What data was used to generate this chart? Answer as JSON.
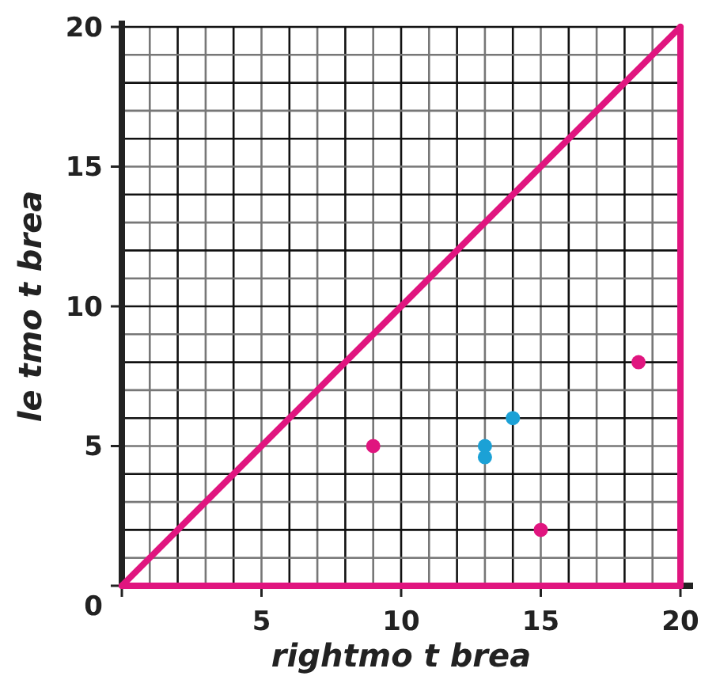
{
  "chart_data": {
    "type": "scatter",
    "xlabel": "rightmo t brea",
    "ylabel": "le tmo t brea",
    "xlim": [
      0,
      20
    ],
    "ylim": [
      0,
      20
    ],
    "xticks": [
      {
        "value": 0,
        "label": null
      },
      5,
      10,
      15,
      20
    ],
    "yticks": [
      0,
      5,
      10,
      15,
      20
    ],
    "grid": true,
    "marker": "circle",
    "series": [
      {
        "type": "line",
        "marker": "none",
        "color": "#e0157f",
        "x": [
          0,
          20
        ],
        "values": [
          0,
          20
        ]
      },
      {
        "type": "line",
        "marker": "none",
        "color": "#e0157f",
        "x": [
          0,
          20
        ],
        "values": [
          0,
          0
        ]
      },
      {
        "type": "line",
        "marker": "none",
        "color": "#e0157f",
        "x": [
          20,
          20
        ],
        "values": [
          0,
          20
        ]
      },
      {
        "color": "#e0157f",
        "x": [
          9,
          15,
          18.5
        ],
        "values": [
          5,
          2,
          8
        ]
      },
      {
        "color": "#1ba1d6",
        "x": [
          13,
          13,
          14
        ],
        "values": [
          5,
          4.6,
          6
        ]
      }
    ]
  }
}
